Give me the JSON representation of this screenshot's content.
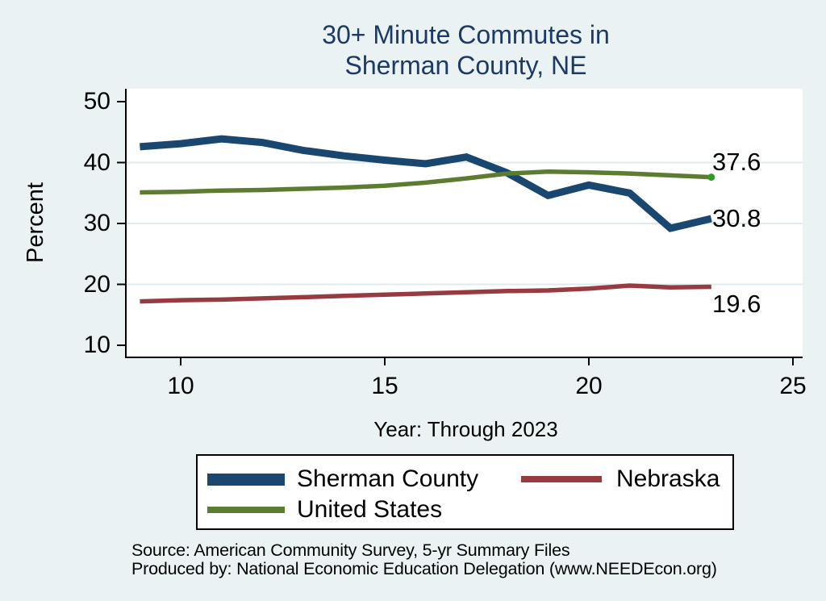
{
  "colors": {
    "background": "#eaf2f3",
    "plot_background": "#ffffff",
    "grid_color": "#dfeaee",
    "axis_color": "#000000",
    "title_color": "#1c3a63"
  },
  "chart_data": {
    "type": "line",
    "title": "30+ Minute Commutes in Sherman County, NE",
    "title_lines": [
      "30+ Minute Commutes in",
      "Sherman County, NE"
    ],
    "xlabel": "Year: Through 2023",
    "ylabel": "Percent",
    "x": [
      9,
      10,
      11,
      12,
      13,
      14,
      15,
      16,
      17,
      18,
      19,
      20,
      21,
      22,
      23
    ],
    "x_ticks": [
      10,
      15,
      20,
      25
    ],
    "y_ticks": [
      50,
      40,
      30,
      20,
      10
    ],
    "gridlines": [
      40,
      30,
      20
    ],
    "xlim": [
      8.6,
      25.3
    ],
    "ylim": [
      8.0,
      52.1
    ],
    "grid": "horizontal gridlines only",
    "legend_position": "bottom",
    "series": [
      {
        "name": "Sherman County",
        "color": "#1a476f",
        "line_width": 9,
        "values": [
          42.6,
          43.1,
          43.9,
          43.3,
          42.0,
          41.1,
          40.4,
          39.8,
          40.9,
          38.3,
          34.6,
          36.3,
          35.0,
          29.2,
          30.8
        ],
        "end_label": "30.8"
      },
      {
        "name": "Nebraska",
        "color": "#983b41",
        "line_width": 5.5,
        "values": [
          17.2,
          17.4,
          17.5,
          17.7,
          17.9,
          18.1,
          18.3,
          18.5,
          18.7,
          18.9,
          19.0,
          19.3,
          19.8,
          19.5,
          19.6
        ],
        "end_label": "19.6"
      },
      {
        "name": "United States",
        "color": "#5c7c31",
        "line_width": 5.5,
        "values": [
          35.1,
          35.2,
          35.4,
          35.5,
          35.7,
          35.9,
          36.2,
          36.7,
          37.4,
          38.2,
          38.5,
          38.4,
          38.2,
          37.9,
          37.6
        ],
        "end_label": "37.6",
        "end_marker": {
          "shape": "circle",
          "color": "#2e9b2e"
        }
      }
    ]
  },
  "legend": {
    "entries": [
      {
        "label": "Sherman County"
      },
      {
        "label": "Nebraska"
      },
      {
        "label": "United States"
      }
    ]
  },
  "footer": {
    "source_line": "Source: American Community Survey, 5-yr Summary Files",
    "produced_by_line": "Produced by: National Economic Education Delegation (www.NEEDEcon.org)"
  }
}
